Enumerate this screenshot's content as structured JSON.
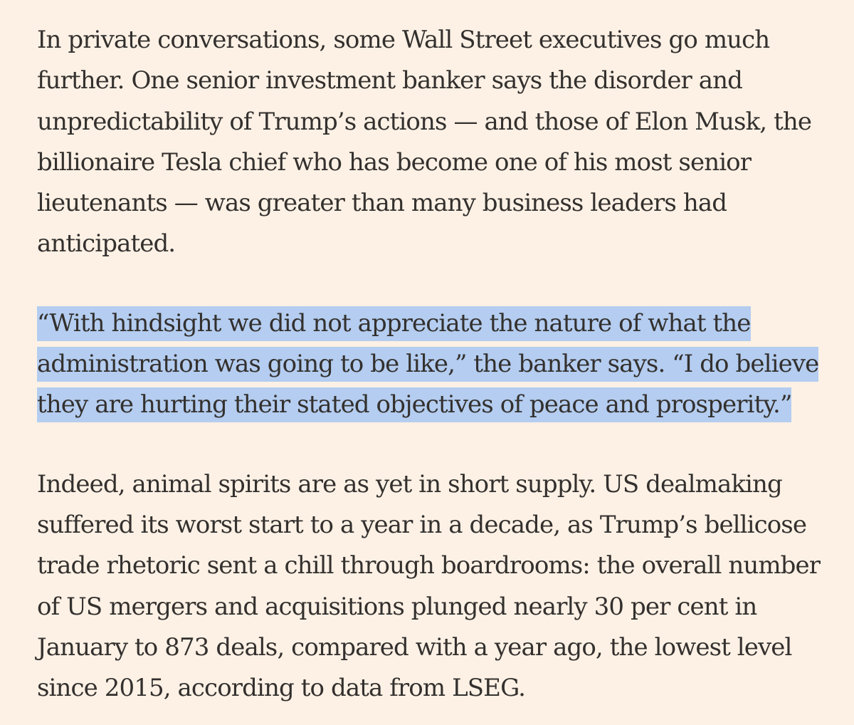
{
  "article": {
    "paragraphs": [
      {
        "highlighted": false,
        "lines": [
          "In private conversations, some Wall Street executives go much",
          "further. One senior investment banker says the disorder and",
          "unpredictability of Trump’s actions — and those of Elon Musk, the",
          "billionaire Tesla chief who has become one of his most senior",
          "lieutenants — was greater than many business leaders had",
          "anticipated."
        ]
      },
      {
        "highlighted": true,
        "highlight_color": "#b4cdf0",
        "lines": [
          "“With hindsight we did not appreciate the nature of what the",
          "administration was going to be like,” the banker says. “I do believe",
          "they are hurting their stated objectives of peace and prosperity.”"
        ]
      },
      {
        "highlighted": false,
        "lines": [
          "Indeed, animal spirits are as yet in short supply. US dealmaking",
          "suffered its worst start to a year in a decade, as Trump’s bellicose",
          "trade rhetoric sent a chill through boardrooms: the overall number",
          "of US mergers and acquisitions plunged nearly 30 per cent in",
          "January to 873 deals, compared with a year ago, the lowest level",
          "since 2015, according to data from LSEG."
        ]
      }
    ]
  },
  "colors": {
    "background": "#fdf1e5",
    "text": "#33302e",
    "selection": "#b4cdf0"
  }
}
